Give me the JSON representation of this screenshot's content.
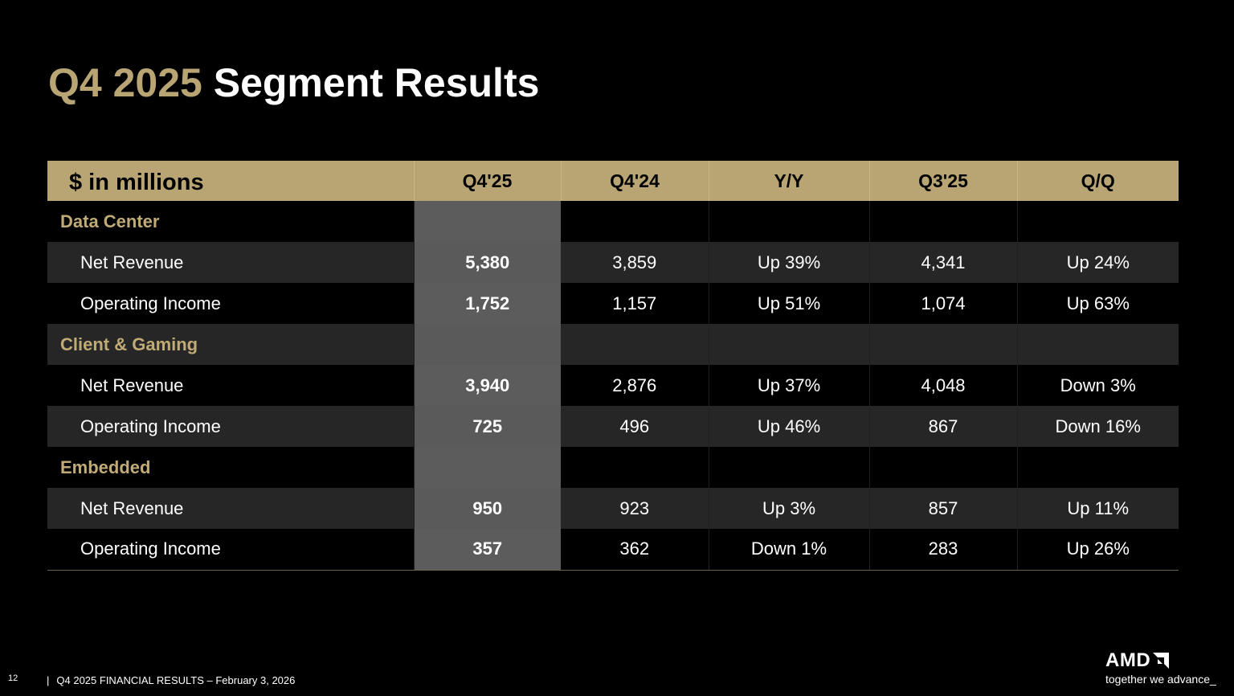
{
  "title": {
    "accent": "Q4 2025",
    "main": "Segment Results"
  },
  "table": {
    "header": [
      "$ in millions",
      "Q4'25",
      "Q4'24",
      "Y/Y",
      "Q3'25",
      "Q/Q"
    ],
    "rows": [
      {
        "type": "section",
        "cells": [
          "Data Center",
          "",
          "",
          "",
          "",
          ""
        ]
      },
      {
        "type": "data",
        "cells": [
          "Net Revenue",
          "5,380",
          "3,859",
          "Up 39%",
          "4,341",
          "Up 24%"
        ]
      },
      {
        "type": "data",
        "cells": [
          "Operating Income",
          "1,752",
          "1,157",
          "Up 51%",
          "1,074",
          "Up 63%"
        ]
      },
      {
        "type": "section",
        "cells": [
          "Client & Gaming",
          "",
          "",
          "",
          "",
          ""
        ]
      },
      {
        "type": "data",
        "cells": [
          "Net Revenue",
          "3,940",
          "2,876",
          "Up 37%",
          "4,048",
          "Down 3%"
        ]
      },
      {
        "type": "data",
        "cells": [
          "Operating Income",
          "725",
          "496",
          "Up 46%",
          "867",
          "Down 16%"
        ]
      },
      {
        "type": "section",
        "cells": [
          "Embedded",
          "",
          "",
          "",
          "",
          ""
        ]
      },
      {
        "type": "data",
        "cells": [
          "Net Revenue",
          "950",
          "923",
          "Up 3%",
          "857",
          "Up 11%"
        ]
      },
      {
        "type": "data",
        "cells": [
          "Operating Income",
          "357",
          "362",
          "Down 1%",
          "283",
          "Up 26%"
        ]
      }
    ]
  },
  "footer": {
    "page_number": "12",
    "separator": "|",
    "text": "Q4 2025 FINANCIAL RESULTS – February 3, 2026"
  },
  "brand": {
    "logo_text": "AMD",
    "logo_icon": "amd-arrow-icon",
    "tagline": "together we advance_"
  },
  "colors": {
    "accent": "#b9a573",
    "background": "#000000",
    "row_shade": "#262626",
    "highlight_column": "#5a5a5a"
  }
}
